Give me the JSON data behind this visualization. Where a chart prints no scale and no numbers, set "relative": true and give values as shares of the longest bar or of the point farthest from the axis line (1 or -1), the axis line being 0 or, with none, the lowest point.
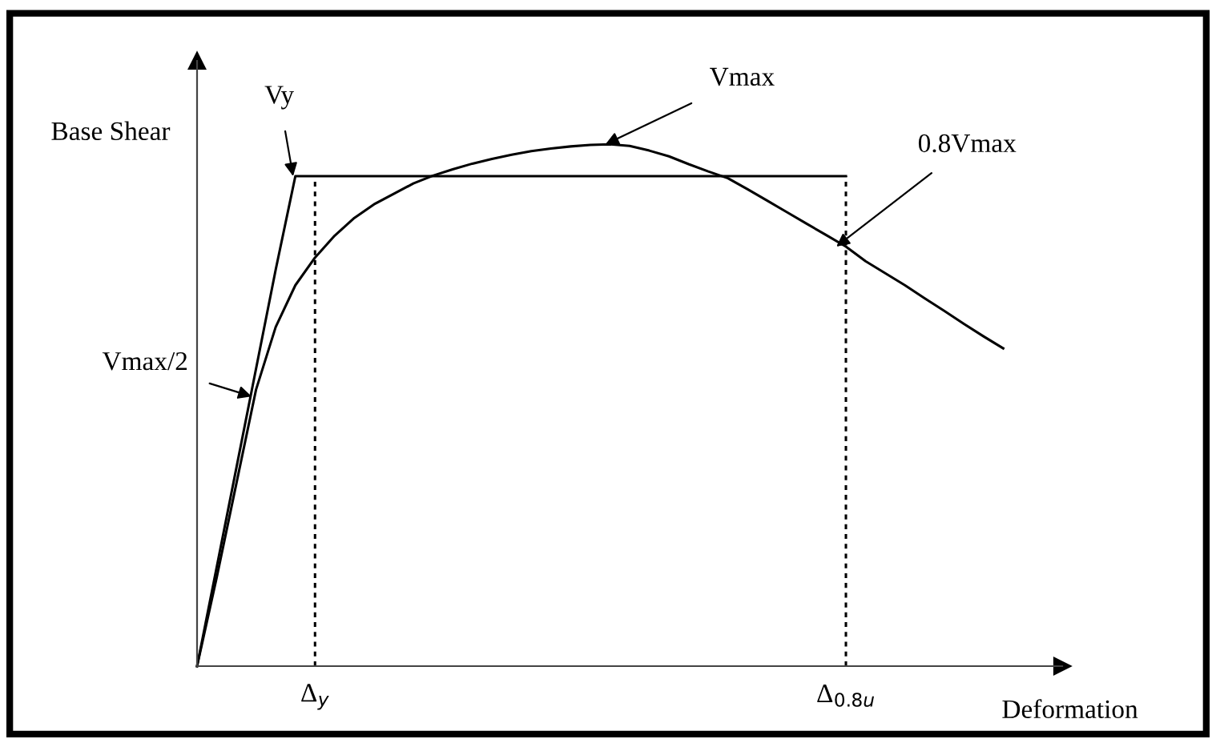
{
  "chart_data": {
    "type": "line",
    "relative": true,
    "xlabel": "Deformation",
    "ylabel": "Base Shear",
    "categories": [
      null,
      null,
      null,
      null,
      null,
      null,
      "Δ$_{y}$",
      null,
      null,
      null,
      null,
      null,
      null,
      null,
      null,
      null,
      null,
      null,
      null,
      null,
      null,
      null,
      null,
      null,
      null,
      null,
      null,
      null,
      null,
      null,
      null,
      null,
      null,
      "Δ$_{0.8u}$",
      null,
      null,
      null,
      null,
      null,
      null,
      null,
      null,
      null,
      null,
      null
    ],
    "series": [
      {
        "color": "#000000",
        "line_style": "solid",
        "values": [
          0,
          0.17,
          0.35,
          0.53,
          0.65,
          0.73,
          0.783,
          0.825,
          0.859,
          0.885,
          0.905,
          0.925,
          0.94,
          0.952,
          0.963,
          0.972,
          0.98,
          0.987,
          0.992,
          0.996,
          0.999,
          1,
          0.997,
          0.988,
          0.977,
          0.962,
          0.948,
          0.935,
          0.914,
          0.892,
          0.87,
          0.848,
          0.826,
          0.804,
          0.776,
          0.753,
          0.73,
          0.705,
          0.681,
          0.656,
          0.632,
          0.609,
          null,
          null,
          null
        ]
      },
      {
        "color": "#000000",
        "line_style": "solid",
        "values": [
          0,
          0.19,
          0.38,
          0.57,
          0.76,
          0.939,
          0.939,
          0.939,
          0.939,
          0.939,
          0.939,
          0.939,
          0.939,
          0.939,
          0.939,
          0.939,
          0.939,
          0.939,
          0.939,
          0.939,
          0.939,
          0.939,
          0.939,
          0.939,
          0.939,
          0.939,
          0.939,
          0.939,
          0.939,
          0.939,
          0.939,
          0.939,
          0.939,
          0.939,
          null,
          null,
          null,
          null,
          null,
          null,
          null,
          null,
          null,
          null,
          null
        ]
      }
    ],
    "ref_lines": [
      {
        "axis": "x",
        "value": "Δ$_{y}$",
        "line_style": "dashed",
        "color": "#000000"
      },
      {
        "axis": "x",
        "value": "Δ$_{0.8u}$",
        "line_style": "dashed",
        "color": "#000000"
      }
    ],
    "annotations": [
      "Vy",
      "Vmax/2",
      "Vmax",
      "0.8Vmax"
    ]
  }
}
